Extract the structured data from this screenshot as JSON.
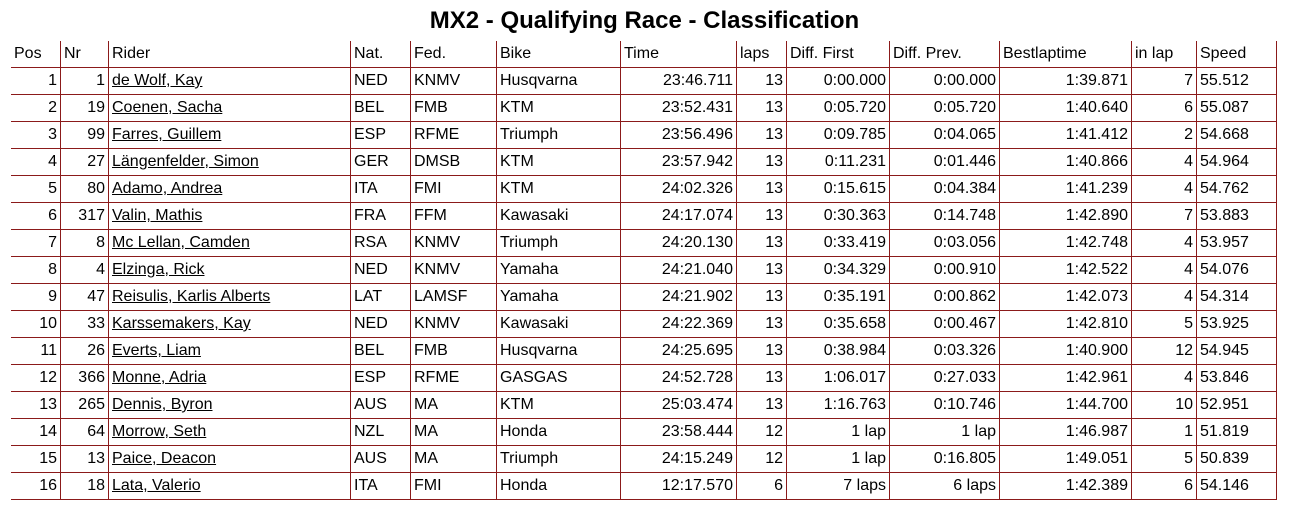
{
  "title": "MX2 - Qualifying Race - Classification",
  "columns": [
    "Pos",
    "Nr",
    "Rider",
    "Nat.",
    "Fed.",
    "Bike",
    "Time",
    "laps",
    "Diff. First",
    "Diff. Prev.",
    "Bestlaptime",
    "in lap",
    "Speed"
  ],
  "rows": [
    {
      "pos": "1",
      "nr": "1",
      "rider": "de Wolf, Kay",
      "nat": "NED",
      "fed": "KNMV",
      "bike": "Husqvarna",
      "time": "23:46.711",
      "laps": "13",
      "diff_first": "0:00.000",
      "diff_prev": "0:00.000",
      "best": "1:39.871",
      "in_lap": "7",
      "speed": "55.512"
    },
    {
      "pos": "2",
      "nr": "19",
      "rider": "Coenen, Sacha",
      "nat": "BEL",
      "fed": "FMB",
      "bike": "KTM",
      "time": "23:52.431",
      "laps": "13",
      "diff_first": "0:05.720",
      "diff_prev": "0:05.720",
      "best": "1:40.640",
      "in_lap": "6",
      "speed": "55.087"
    },
    {
      "pos": "3",
      "nr": "99",
      "rider": "Farres, Guillem",
      "nat": "ESP",
      "fed": "RFME",
      "bike": "Triumph",
      "time": "23:56.496",
      "laps": "13",
      "diff_first": "0:09.785",
      "diff_prev": "0:04.065",
      "best": "1:41.412",
      "in_lap": "2",
      "speed": "54.668"
    },
    {
      "pos": "4",
      "nr": "27",
      "rider": "Längenfelder, Simon",
      "nat": "GER",
      "fed": "DMSB",
      "bike": "KTM",
      "time": "23:57.942",
      "laps": "13",
      "diff_first": "0:11.231",
      "diff_prev": "0:01.446",
      "best": "1:40.866",
      "in_lap": "4",
      "speed": "54.964"
    },
    {
      "pos": "5",
      "nr": "80",
      "rider": "Adamo, Andrea",
      "nat": "ITA",
      "fed": "FMI",
      "bike": "KTM",
      "time": "24:02.326",
      "laps": "13",
      "diff_first": "0:15.615",
      "diff_prev": "0:04.384",
      "best": "1:41.239",
      "in_lap": "4",
      "speed": "54.762"
    },
    {
      "pos": "6",
      "nr": "317",
      "rider": "Valin, Mathis",
      "nat": "FRA",
      "fed": "FFM",
      "bike": "Kawasaki",
      "time": "24:17.074",
      "laps": "13",
      "diff_first": "0:30.363",
      "diff_prev": "0:14.748",
      "best": "1:42.890",
      "in_lap": "7",
      "speed": "53.883"
    },
    {
      "pos": "7",
      "nr": "8",
      "rider": "Mc Lellan, Camden",
      "nat": "RSA",
      "fed": "KNMV",
      "bike": "Triumph",
      "time": "24:20.130",
      "laps": "13",
      "diff_first": "0:33.419",
      "diff_prev": "0:03.056",
      "best": "1:42.748",
      "in_lap": "4",
      "speed": "53.957"
    },
    {
      "pos": "8",
      "nr": "4",
      "rider": "Elzinga, Rick",
      "nat": "NED",
      "fed": "KNMV",
      "bike": "Yamaha",
      "time": "24:21.040",
      "laps": "13",
      "diff_first": "0:34.329",
      "diff_prev": "0:00.910",
      "best": "1:42.522",
      "in_lap": "4",
      "speed": "54.076"
    },
    {
      "pos": "9",
      "nr": "47",
      "rider": "Reisulis, Karlis Alberts",
      "nat": "LAT",
      "fed": "LAMSF",
      "bike": "Yamaha",
      "time": "24:21.902",
      "laps": "13",
      "diff_first": "0:35.191",
      "diff_prev": "0:00.862",
      "best": "1:42.073",
      "in_lap": "4",
      "speed": "54.314"
    },
    {
      "pos": "10",
      "nr": "33",
      "rider": "Karssemakers, Kay",
      "nat": "NED",
      "fed": "KNMV",
      "bike": "Kawasaki",
      "time": "24:22.369",
      "laps": "13",
      "diff_first": "0:35.658",
      "diff_prev": "0:00.467",
      "best": "1:42.810",
      "in_lap": "5",
      "speed": "53.925"
    },
    {
      "pos": "11",
      "nr": "26",
      "rider": "Everts, Liam",
      "nat": "BEL",
      "fed": "FMB",
      "bike": "Husqvarna",
      "time": "24:25.695",
      "laps": "13",
      "diff_first": "0:38.984",
      "diff_prev": "0:03.326",
      "best": "1:40.900",
      "in_lap": "12",
      "speed": "54.945"
    },
    {
      "pos": "12",
      "nr": "366",
      "rider": "Monne, Adria",
      "nat": "ESP",
      "fed": "RFME",
      "bike": "GASGAS",
      "time": "24:52.728",
      "laps": "13",
      "diff_first": "1:06.017",
      "diff_prev": "0:27.033",
      "best": "1:42.961",
      "in_lap": "4",
      "speed": "53.846"
    },
    {
      "pos": "13",
      "nr": "265",
      "rider": "Dennis, Byron",
      "nat": "AUS",
      "fed": "MA",
      "bike": "KTM",
      "time": "25:03.474",
      "laps": "13",
      "diff_first": "1:16.763",
      "diff_prev": "0:10.746",
      "best": "1:44.700",
      "in_lap": "10",
      "speed": "52.951"
    },
    {
      "pos": "14",
      "nr": "64",
      "rider": "Morrow, Seth",
      "nat": "NZL",
      "fed": "MA",
      "bike": "Honda",
      "time": "23:58.444",
      "laps": "12",
      "diff_first": "1 lap",
      "diff_prev": "1 lap",
      "best": "1:46.987",
      "in_lap": "1",
      "speed": "51.819"
    },
    {
      "pos": "15",
      "nr": "13",
      "rider": "Paice, Deacon",
      "nat": "AUS",
      "fed": "MA",
      "bike": "Triumph",
      "time": "24:15.249",
      "laps": "12",
      "diff_first": "1 lap",
      "diff_prev": "0:16.805",
      "best": "1:49.051",
      "in_lap": "5",
      "speed": "50.839"
    },
    {
      "pos": "16",
      "nr": "18",
      "rider": "Lata, Valerio",
      "nat": "ITA",
      "fed": "FMI",
      "bike": "Honda",
      "time": "12:17.570",
      "laps": "6",
      "diff_first": "7 laps",
      "diff_prev": "6 laps",
      "best": "1:42.389",
      "in_lap": "6",
      "speed": "54.146"
    }
  ]
}
